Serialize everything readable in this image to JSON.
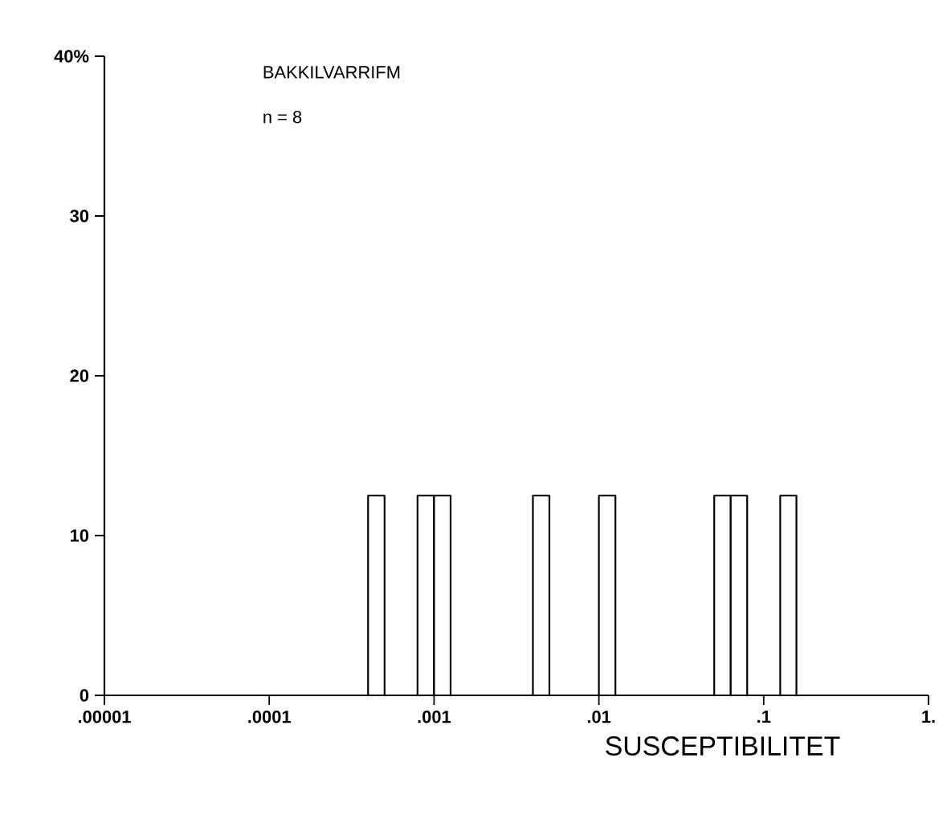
{
  "chart_data": {
    "type": "histogram",
    "xlabel": "SUSCEPTIBILITET",
    "annotations": [
      "BAKKILVARRIFM",
      "n =   8"
    ],
    "bins": [
      0.000398,
      0.000501,
      0.000631,
      0.000794,
      0.001,
      0.00126,
      0.00158,
      0.002,
      0.00251,
      0.00316,
      0.00398,
      0.00501,
      0.00631,
      0.00794,
      0.01,
      0.0126,
      0.0158,
      0.02,
      0.0251,
      0.0316,
      0.0398,
      0.0501,
      0.0631,
      0.0794,
      0.1,
      0.126,
      0.158
    ],
    "values": [
      12.5,
      0,
      0,
      12.5,
      12.5,
      0,
      0,
      0,
      0,
      0,
      12.5,
      0,
      0,
      0,
      12.5,
      0,
      0,
      0,
      0,
      0,
      0,
      12.5,
      12.5,
      0,
      0,
      12.5
    ],
    "color": "#000000",
    "log": "x",
    "xlim": [
      1e-05,
      1
    ],
    "xticks": [
      {
        "value": 1e-05,
        "label": ".00001"
      },
      {
        "value": 0.0001,
        "label": ".0001"
      },
      {
        "value": 0.001,
        "label": ".001"
      },
      {
        "value": 0.01,
        "label": ".01"
      },
      {
        "value": 0.1,
        "label": ".1"
      },
      {
        "value": 1,
        "label": "1."
      }
    ],
    "ylim": [
      0,
      40
    ],
    "yticks": [
      0,
      10,
      20,
      30,
      {
        "value": 40,
        "label": "40%"
      }
    ]
  }
}
